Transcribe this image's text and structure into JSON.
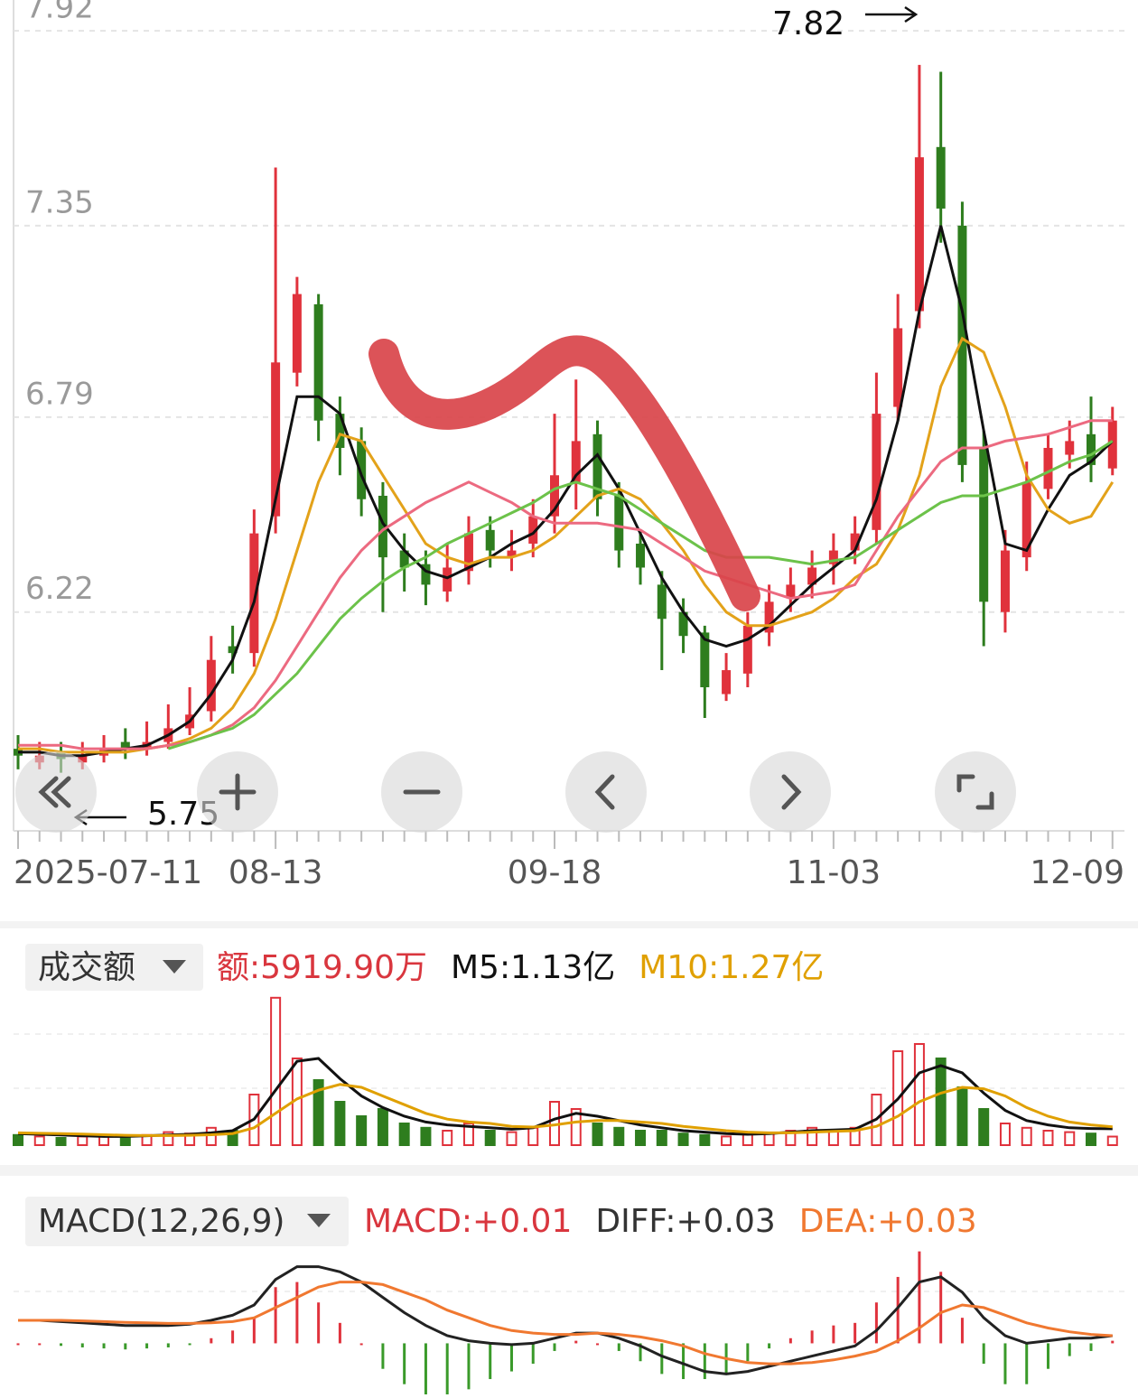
{
  "chart_data": [
    {
      "type": "candlestick",
      "categories": [
        "2025-07-11",
        null,
        null,
        null,
        null,
        null,
        null,
        null,
        null,
        null,
        null,
        null,
        "08-13",
        null,
        null,
        null,
        null,
        null,
        null,
        null,
        null,
        null,
        null,
        null,
        null,
        "09-18",
        null,
        null,
        null,
        null,
        null,
        null,
        null,
        null,
        null,
        null,
        null,
        null,
        "11-03",
        null,
        null,
        null,
        null,
        null,
        null,
        null,
        null,
        null,
        null,
        null,
        null,
        "12-09"
      ],
      "open": [
        5.82,
        5.78,
        5.81,
        5.78,
        5.8,
        5.84,
        5.82,
        5.84,
        5.88,
        5.93,
        6.12,
        6.1,
        6.5,
        6.92,
        7.12,
        6.8,
        6.72,
        6.56,
        6.4,
        6.36,
        6.28,
        6.34,
        6.46,
        6.38,
        6.42,
        6.5,
        6.6,
        6.74,
        6.56,
        6.42,
        6.3,
        6.22,
        6.16,
        5.98,
        6.04,
        6.16,
        6.26,
        6.3,
        6.36,
        6.4,
        6.46,
        6.82,
        7.1,
        7.58,
        7.35,
        6.7,
        6.22,
        6.38,
        6.58,
        6.68,
        6.74,
        6.64
      ],
      "high": [
        5.86,
        5.84,
        5.84,
        5.84,
        5.86,
        5.88,
        5.9,
        5.95,
        6.0,
        6.15,
        6.18,
        6.52,
        7.52,
        7.2,
        7.15,
        6.85,
        6.76,
        6.6,
        6.45,
        6.4,
        6.42,
        6.5,
        6.5,
        6.46,
        6.55,
        6.8,
        6.9,
        6.78,
        6.6,
        6.46,
        6.34,
        6.26,
        6.18,
        6.1,
        6.22,
        6.3,
        6.35,
        6.4,
        6.45,
        6.5,
        6.92,
        7.15,
        7.82,
        7.8,
        7.42,
        6.75,
        6.46,
        6.66,
        6.74,
        6.78,
        6.85,
        6.82
      ],
      "low": [
        5.76,
        5.76,
        5.75,
        5.76,
        5.78,
        5.79,
        5.8,
        5.82,
        5.86,
        5.9,
        6.04,
        6.06,
        6.45,
        6.88,
        6.72,
        6.62,
        6.5,
        6.22,
        6.28,
        6.24,
        6.25,
        6.3,
        6.35,
        6.34,
        6.38,
        6.45,
        6.52,
        6.5,
        6.35,
        6.3,
        6.05,
        6.1,
        5.91,
        5.96,
        6.0,
        6.12,
        6.22,
        6.26,
        6.3,
        6.36,
        6.42,
        6.78,
        7.05,
        7.3,
        6.6,
        6.12,
        6.16,
        6.34,
        6.55,
        6.64,
        6.6,
        6.62
      ],
      "close": [
        5.8,
        5.8,
        5.79,
        5.8,
        5.82,
        5.82,
        5.84,
        5.88,
        5.92,
        6.08,
        6.1,
        6.45,
        6.95,
        7.15,
        6.78,
        6.7,
        6.55,
        6.38,
        6.35,
        6.3,
        6.35,
        6.45,
        6.4,
        6.4,
        6.5,
        6.62,
        6.72,
        6.55,
        6.4,
        6.35,
        6.2,
        6.15,
        6.0,
        6.05,
        6.18,
        6.25,
        6.3,
        6.35,
        6.4,
        6.45,
        6.8,
        7.05,
        7.55,
        7.4,
        6.65,
        6.25,
        6.4,
        6.6,
        6.7,
        6.72,
        6.65,
        6.78
      ],
      "up_color": "#e0323c",
      "down_color": "#2e7d1e",
      "lines": [
        {
          "color": "#111111",
          "values": [
            5.81,
            5.81,
            5.8,
            5.8,
            5.81,
            5.82,
            5.83,
            5.86,
            5.9,
            5.98,
            6.08,
            6.25,
            6.55,
            6.85,
            6.85,
            6.8,
            6.62,
            6.48,
            6.4,
            6.34,
            6.32,
            6.35,
            6.38,
            6.42,
            6.45,
            6.52,
            6.62,
            6.68,
            6.58,
            6.45,
            6.32,
            6.22,
            6.14,
            6.12,
            6.14,
            6.18,
            6.24,
            6.3,
            6.35,
            6.4,
            6.55,
            6.78,
            7.1,
            7.35,
            7.1,
            6.75,
            6.42,
            6.4,
            6.52,
            6.62,
            6.66,
            6.72
          ]
        },
        {
          "color": "#e3a21a",
          "values": [
            5.82,
            5.82,
            5.81,
            5.81,
            5.81,
            5.81,
            5.82,
            5.83,
            5.85,
            5.88,
            5.94,
            6.04,
            6.2,
            6.4,
            6.6,
            6.74,
            6.72,
            6.62,
            6.52,
            6.42,
            6.38,
            6.36,
            6.38,
            6.38,
            6.4,
            6.44,
            6.5,
            6.56,
            6.58,
            6.55,
            6.48,
            6.4,
            6.3,
            6.22,
            6.18,
            6.18,
            6.2,
            6.22,
            6.26,
            6.32,
            6.36,
            6.46,
            6.62,
            6.88,
            7.02,
            6.98,
            6.82,
            6.62,
            6.52,
            6.48,
            6.5,
            6.6
          ]
        },
        {
          "color": "#ec6a80",
          "values": [
            5.83,
            5.83,
            5.83,
            5.82,
            5.82,
            5.82,
            5.82,
            5.83,
            5.84,
            5.86,
            5.89,
            5.94,
            6.02,
            6.12,
            6.22,
            6.32,
            6.4,
            6.46,
            6.5,
            6.54,
            6.57,
            6.6,
            6.57,
            6.54,
            6.5,
            6.48,
            6.48,
            6.48,
            6.47,
            6.46,
            6.42,
            6.38,
            6.34,
            6.32,
            6.3,
            6.28,
            6.26,
            6.27,
            6.28,
            6.3,
            6.4,
            6.5,
            6.58,
            6.66,
            6.7,
            6.7,
            6.72,
            6.73,
            6.74,
            6.76,
            6.78,
            6.78
          ]
        },
        {
          "color": "#6cc24a",
          "values": [
            null,
            null,
            null,
            null,
            null,
            null,
            null,
            5.82,
            5.84,
            5.86,
            5.88,
            5.92,
            5.98,
            6.04,
            6.12,
            6.2,
            6.26,
            6.31,
            6.35,
            6.38,
            6.42,
            6.45,
            6.48,
            6.51,
            6.54,
            6.58,
            6.6,
            6.58,
            6.56,
            6.52,
            6.48,
            6.44,
            6.4,
            6.38,
            6.38,
            6.38,
            6.37,
            6.36,
            6.37,
            6.38,
            6.42,
            6.46,
            6.5,
            6.54,
            6.56,
            6.56,
            6.58,
            6.6,
            6.63,
            6.66,
            6.68,
            6.72
          ]
        }
      ],
      "ylim": [
        5.58,
        8.01
      ],
      "yticks": [
        7.92,
        7.35,
        6.79,
        6.22
      ],
      "grid": true,
      "max_label": 7.82,
      "min_label": 5.75
    },
    {
      "type": "bar",
      "header": "成交额",
      "indicators": [
        {
          "text": "额:5919.90万",
          "color": "#d9363e"
        },
        {
          "text": "M5:1.13亿",
          "color": "#111111"
        },
        {
          "text": "M10:1.27亿",
          "color": "#e0a000"
        }
      ],
      "values": [
        0.7,
        0.6,
        0.5,
        0.6,
        0.7,
        0.6,
        0.7,
        0.9,
        0.8,
        1.2,
        1.0,
        3.5,
        10.2,
        6.0,
        4.5,
        3.0,
        2.0,
        2.5,
        1.5,
        1.2,
        1.0,
        1.5,
        1.0,
        0.9,
        1.2,
        3.0,
        2.5,
        1.5,
        1.2,
        1.0,
        1.0,
        0.8,
        0.7,
        0.6,
        0.8,
        0.8,
        1.0,
        1.2,
        1.0,
        1.2,
        3.5,
        6.5,
        7.0,
        6.0,
        4.0,
        2.5,
        1.5,
        1.2,
        1.0,
        0.9,
        0.8,
        0.592
      ],
      "lines": [
        {
          "color": "#111111",
          "values": [
            0.8,
            0.75,
            0.7,
            0.65,
            0.6,
            0.6,
            0.65,
            0.7,
            0.75,
            0.85,
            1.0,
            1.8,
            3.8,
            5.8,
            6.0,
            4.6,
            3.4,
            2.6,
            2.0,
            1.6,
            1.4,
            1.3,
            1.2,
            1.1,
            1.2,
            1.8,
            2.2,
            2.0,
            1.7,
            1.4,
            1.2,
            1.0,
            0.9,
            0.8,
            0.75,
            0.8,
            0.9,
            1.0,
            1.05,
            1.1,
            1.8,
            3.2,
            5.0,
            5.5,
            5.0,
            3.6,
            2.4,
            1.7,
            1.4,
            1.2,
            1.15,
            1.13
          ]
        },
        {
          "color": "#e0a000",
          "values": [
            0.85,
            0.82,
            0.8,
            0.76,
            0.72,
            0.68,
            0.66,
            0.66,
            0.68,
            0.72,
            0.8,
            1.2,
            2.2,
            3.2,
            3.8,
            4.2,
            4.0,
            3.4,
            2.8,
            2.2,
            1.8,
            1.6,
            1.5,
            1.3,
            1.25,
            1.4,
            1.6,
            1.7,
            1.7,
            1.6,
            1.5,
            1.3,
            1.15,
            1.0,
            0.9,
            0.85,
            0.85,
            0.9,
            0.95,
            1.0,
            1.3,
            2.0,
            3.0,
            3.6,
            4.0,
            3.9,
            3.4,
            2.6,
            2.0,
            1.6,
            1.4,
            1.27
          ]
        }
      ],
      "ylim": [
        0,
        10.5
      ]
    },
    {
      "type": "macd",
      "header": "MACD(12,26,9)",
      "indicators": [
        {
          "text": "MACD:+0.01",
          "color": "#d9363e"
        },
        {
          "text": "DIFF:+0.03",
          "color": "#333333"
        },
        {
          "text": "DEA:+0.03",
          "color": "#f07830"
        }
      ],
      "values": [
        0,
        0,
        -0.01,
        -0.016,
        -0.02,
        -0.024,
        -0.02,
        -0.016,
        -0.006,
        0.02,
        0.05,
        0.1,
        0.22,
        0.24,
        0.16,
        0.08,
        0,
        -0.1,
        -0.16,
        -0.2,
        -0.2,
        -0.18,
        -0.14,
        -0.11,
        -0.08,
        -0.03,
        0.01,
        0,
        -0.03,
        -0.07,
        -0.12,
        -0.14,
        -0.14,
        -0.12,
        -0.07,
        -0.02,
        0.02,
        0.05,
        0.07,
        0.08,
        0.16,
        0.26,
        0.36,
        0.28,
        0.1,
        -0.08,
        -0.16,
        -0.16,
        -0.1,
        -0.05,
        -0.03,
        0.01
      ],
      "up_color": "#e0323c",
      "down_color": "#3a9a2a",
      "lines": [
        {
          "color": "#222222",
          "values": [
            0.09,
            0.09,
            0.085,
            0.08,
            0.075,
            0.07,
            0.07,
            0.07,
            0.075,
            0.09,
            0.11,
            0.15,
            0.25,
            0.3,
            0.3,
            0.28,
            0.24,
            0.18,
            0.12,
            0.07,
            0.03,
            0.01,
            0,
            -0.005,
            0,
            0.02,
            0.04,
            0.04,
            0.02,
            -0.01,
            -0.05,
            -0.08,
            -0.11,
            -0.12,
            -0.11,
            -0.09,
            -0.07,
            -0.05,
            -0.03,
            -0.01,
            0.05,
            0.14,
            0.24,
            0.26,
            0.2,
            0.1,
            0.03,
            0,
            0.01,
            0.02,
            0.02,
            0.03
          ]
        },
        {
          "color": "#f07830",
          "values": [
            0.09,
            0.09,
            0.09,
            0.088,
            0.085,
            0.082,
            0.08,
            0.078,
            0.078,
            0.08,
            0.085,
            0.1,
            0.14,
            0.18,
            0.22,
            0.24,
            0.24,
            0.23,
            0.2,
            0.17,
            0.13,
            0.1,
            0.07,
            0.05,
            0.04,
            0.035,
            0.035,
            0.04,
            0.035,
            0.025,
            0.01,
            -0.01,
            -0.04,
            -0.06,
            -0.075,
            -0.08,
            -0.08,
            -0.075,
            -0.065,
            -0.05,
            -0.03,
            0.01,
            0.06,
            0.12,
            0.15,
            0.14,
            0.11,
            0.08,
            0.06,
            0.045,
            0.035,
            0.03
          ]
        }
      ],
      "ylim": [
        -0.2,
        0.38
      ]
    }
  ]
}
